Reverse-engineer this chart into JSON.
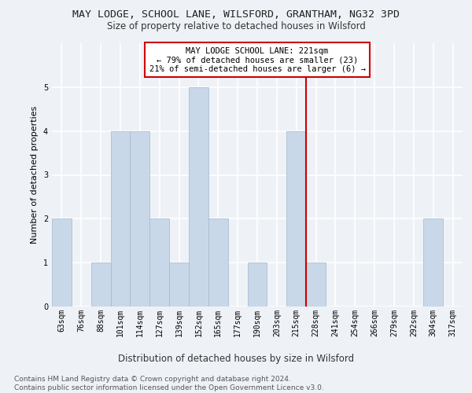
{
  "title": "MAY LODGE, SCHOOL LANE, WILSFORD, GRANTHAM, NG32 3PD",
  "subtitle": "Size of property relative to detached houses in Wilsford",
  "xlabel": "Distribution of detached houses by size in Wilsford",
  "ylabel": "Number of detached properties",
  "bar_color": "#c8d8e8",
  "bar_edge_color": "#a0b8cc",
  "background_color": "#eef2f7",
  "grid_color": "#ffffff",
  "categories": [
    "63sqm",
    "76sqm",
    "88sqm",
    "101sqm",
    "114sqm",
    "127sqm",
    "139sqm",
    "152sqm",
    "165sqm",
    "177sqm",
    "190sqm",
    "203sqm",
    "215sqm",
    "228sqm",
    "241sqm",
    "254sqm",
    "266sqm",
    "279sqm",
    "292sqm",
    "304sqm",
    "317sqm"
  ],
  "values": [
    2,
    0,
    1,
    4,
    4,
    2,
    1,
    5,
    2,
    0,
    1,
    0,
    4,
    1,
    0,
    0,
    0,
    0,
    0,
    2,
    0
  ],
  "annotation_text": "MAY LODGE SCHOOL LANE: 221sqm\n← 79% of detached houses are smaller (23)\n21% of semi-detached houses are larger (6) →",
  "annotation_box_color": "#ffffff",
  "annotation_box_edge": "#cc0000",
  "annotation_text_color": "#000000",
  "vline_color": "#cc0000",
  "vline_bin_index": 12.5,
  "footer_text": "Contains HM Land Registry data © Crown copyright and database right 2024.\nContains public sector information licensed under the Open Government Licence v3.0.",
  "ylim": [
    0,
    6
  ],
  "yticks": [
    0,
    1,
    2,
    3,
    4,
    5,
    6
  ],
  "title_fontsize": 9.5,
  "subtitle_fontsize": 8.5,
  "ylabel_fontsize": 8,
  "xlabel_fontsize": 8.5,
  "tick_fontsize": 7,
  "annotation_fontsize": 7.5,
  "footer_fontsize": 6.5
}
